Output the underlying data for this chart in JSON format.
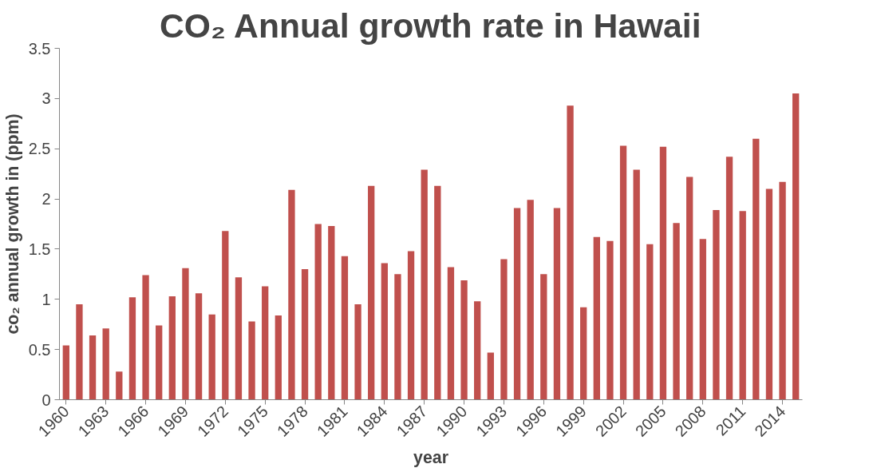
{
  "chart_data": {
    "type": "bar",
    "title": "CO₂ Annual growth rate in Hawaii",
    "xlabel": "year",
    "ylabel": "co₂ annual growth in (ppm)",
    "categories": [
      "1960",
      null,
      null,
      "1963",
      null,
      null,
      "1966",
      null,
      null,
      "1969",
      null,
      null,
      "1972",
      null,
      null,
      "1975",
      null,
      null,
      "1978",
      null,
      null,
      "1981",
      null,
      null,
      "1984",
      null,
      null,
      "1987",
      null,
      null,
      "1990",
      null,
      null,
      "1993",
      null,
      null,
      "1996",
      null,
      null,
      "1999",
      null,
      null,
      "2002",
      null,
      null,
      "2005",
      null,
      null,
      "2008",
      null,
      null,
      "2011",
      null,
      null,
      "2014",
      null
    ],
    "values": [
      0.54,
      0.95,
      0.64,
      0.71,
      0.28,
      1.02,
      1.24,
      0.74,
      1.03,
      1.31,
      1.06,
      0.85,
      1.68,
      1.22,
      0.78,
      1.13,
      0.84,
      2.09,
      1.3,
      1.75,
      1.73,
      1.43,
      0.95,
      2.13,
      1.36,
      1.25,
      1.48,
      2.29,
      2.13,
      1.32,
      1.19,
      0.98,
      0.47,
      1.4,
      1.91,
      1.99,
      1.25,
      1.91,
      2.93,
      0.92,
      1.62,
      1.58,
      2.53,
      2.29,
      1.55,
      2.52,
      1.76,
      2.22,
      1.6,
      1.89,
      2.42,
      1.88,
      2.6,
      2.1,
      2.17,
      3.05
    ],
    "color": "#c0504d",
    "ylim": [
      0,
      3.5
    ],
    "yticks": [
      0,
      0.5,
      1,
      1.5,
      2,
      2.5,
      3,
      3.5
    ],
    "grid": false
  }
}
